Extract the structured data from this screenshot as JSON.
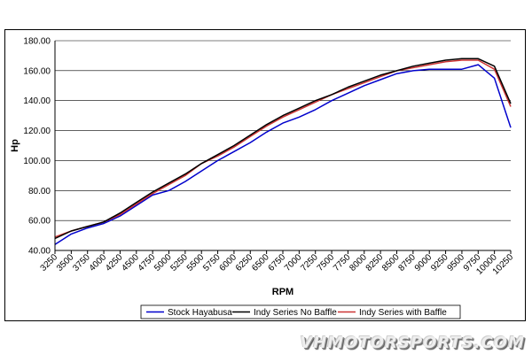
{
  "chart_data": {
    "type": "line",
    "title": "",
    "xlabel": "RPM",
    "ylabel": "Hp",
    "ylim": [
      40,
      180
    ],
    "yticks": [
      "40.00",
      "60.00",
      "80.00",
      "100.00",
      "120.00",
      "140.00",
      "160.00",
      "180.00"
    ],
    "xticks": [
      "3250",
      "3500",
      "3750",
      "4000",
      "4250",
      "4500",
      "4750",
      "5000",
      "5250",
      "5500",
      "5750",
      "6000",
      "6250",
      "6500",
      "6750",
      "7000",
      "7250",
      "7500",
      "7750",
      "8000",
      "8250",
      "8500",
      "8750",
      "9000",
      "9250",
      "9500",
      "9750",
      "10000",
      "10250"
    ],
    "grid": "horizontal",
    "legend_position": "bottom",
    "x": [
      3250,
      3500,
      3750,
      4000,
      4250,
      4500,
      4750,
      5000,
      5250,
      5500,
      5750,
      6000,
      6250,
      6500,
      6750,
      7000,
      7250,
      7500,
      7750,
      8000,
      8250,
      8500,
      8750,
      9000,
      9250,
      9500,
      9750,
      10000,
      10250
    ],
    "series": [
      {
        "name": "Stock Hayabusa",
        "color": "#0000cc",
        "values": [
          44,
          51,
          55,
          58,
          63,
          70,
          77,
          80,
          86,
          93,
          100,
          106,
          112,
          119,
          125,
          129,
          134,
          140,
          145,
          150,
          154,
          158,
          160,
          161,
          161,
          161,
          164,
          155,
          122
        ]
      },
      {
        "name": "Indy Series No Baffle",
        "color": "#000000",
        "values": [
          48,
          53,
          56,
          59,
          65,
          72,
          79,
          85,
          91,
          98,
          104,
          110,
          117,
          124,
          130,
          135,
          140,
          144,
          149,
          153,
          157,
          160,
          163,
          165,
          167,
          168,
          168,
          163,
          138
        ]
      },
      {
        "name": "Indy Series with Baffle",
        "color": "#cc3333",
        "values": [
          49,
          53,
          56,
          59,
          64,
          71,
          78,
          84,
          90,
          98,
          103,
          109,
          116,
          123,
          129,
          134,
          139,
          144,
          148,
          152,
          156,
          160,
          162,
          164,
          166,
          167,
          167,
          161,
          136
        ]
      }
    ]
  },
  "watermark": "VHMOTORSPORTS.COM"
}
